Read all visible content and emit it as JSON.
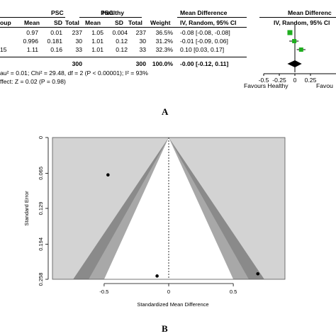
{
  "forest": {
    "group_headers": {
      "psc": "PSC",
      "healthy": "Healthy",
      "md": "Mean Difference",
      "md_plot": "Mean Differenc"
    },
    "column_headers": {
      "study": "oup",
      "mean1": "Mean",
      "sd1": "SD",
      "total1": "Total",
      "mean2": "Mean",
      "sd2": "SD",
      "total2": "Total",
      "weight": "Weight",
      "md_ci": "IV, Random, 95% CI",
      "md_plot_ci": "IV, Random, 95% Cl"
    },
    "rows": [
      {
        "study": "",
        "mean1": "0.97",
        "sd1": "0.01",
        "total1": "237",
        "mean2": "1.05",
        "sd2": "0.004",
        "total2": "237",
        "weight": "36.5%",
        "md_ci": "-0.08 [-0.08, -0.08]"
      },
      {
        "study": "",
        "mean1": "0.996",
        "sd1": "0.181",
        "total1": "30",
        "mean2": "1.01",
        "sd2": "0.12",
        "total2": "30",
        "weight": "31.2%",
        "md_ci": "-0.01 [-0.09, 0.06]"
      },
      {
        "study": "15",
        "mean1": "1.11",
        "sd1": "0.16",
        "total1": "33",
        "mean2": "1.01",
        "sd2": "0.12",
        "total2": "33",
        "weight": "32.3%",
        "md_ci": "0.10 [0.03, 0.17]"
      }
    ],
    "total_row": {
      "total1": "300",
      "total2": "300",
      "weight": "100.0%",
      "md_ci": "-0.00 [-0.12, 0.11]"
    },
    "heterogeneity": "au² = 0.01; Chi² = 29.48, df = 2 (P < 0.00001); I² = 93%",
    "overall_effect": "ffect: Z = 0.02 (P = 0.98)",
    "footer_left": "Favours Healthy",
    "footer_right": "Favou",
    "panel_label": "A",
    "colors": {
      "square": "#1fae1f",
      "diamond": "#000000"
    }
  },
  "funnel_panel_label": "B",
  "chart_data": [
    {
      "type": "scatter",
      "name": "forest-plot",
      "studies": [
        {
          "md": -0.08,
          "ci": [
            -0.08,
            -0.08
          ]
        },
        {
          "md": -0.01,
          "ci": [
            -0.09,
            0.06
          ]
        },
        {
          "md": 0.1,
          "ci": [
            0.03,
            0.17
          ]
        }
      ],
      "overall": {
        "md": -0.0,
        "ci": [
          -0.12,
          0.11
        ]
      },
      "xticks": [
        "-0.5",
        "-0.25",
        "0",
        "0.25"
      ],
      "xlim": [
        -0.5,
        0.25
      ]
    },
    {
      "type": "scatter",
      "name": "funnel-plot",
      "xlabel": "Standardized Mean Difference",
      "ylabel": "Standard Error",
      "xticks": [
        "-0.5",
        "0",
        "0.5"
      ],
      "yticks": [
        "0",
        "0.065",
        "0.129",
        "0.194",
        "0.258"
      ],
      "xlim": [
        -0.9,
        0.9
      ],
      "ylim": [
        0,
        0.258
      ],
      "points": [
        {
          "x": -0.47,
          "y": 0.068
        },
        {
          "x": -0.09,
          "y": 0.252
        },
        {
          "x": 0.69,
          "y": 0.248
        }
      ],
      "colors": {
        "background": "#d3d3d3",
        "inner_region": "#ffffff",
        "mid_band": "#a8a8a8",
        "outer_band": "#8a8a8a"
      }
    }
  ]
}
